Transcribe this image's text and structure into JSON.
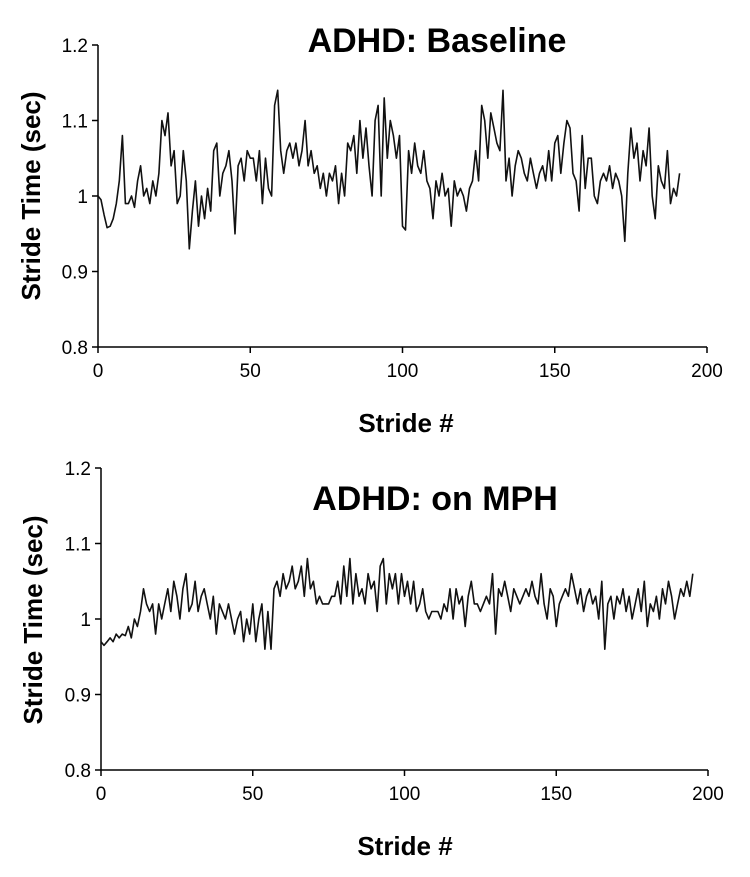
{
  "chart_data": [
    {
      "type": "line",
      "title": "ADHD: Baseline",
      "xlabel": "Stride #",
      "ylabel": "Stride Time (sec)",
      "xlim": [
        0,
        200
      ],
      "ylim": [
        0.8,
        1.2
      ],
      "xticks": [
        0,
        50,
        100,
        150,
        200
      ],
      "yticks": [
        0.8,
        0.9,
        1,
        1.1,
        1.2
      ],
      "x_tick_labels": [
        "0",
        "50",
        "100",
        "150",
        "200"
      ],
      "y_tick_labels": [
        "0.8",
        "0.9",
        "1",
        "1.1",
        "1.2"
      ],
      "grid": false,
      "series": [
        {
          "x_start": 0,
          "values": [
            1.0,
            0.995,
            0.975,
            0.958,
            0.96,
            0.97,
            0.99,
            1.02,
            1.08,
            0.99,
            0.99,
            1.0,
            0.985,
            1.02,
            1.04,
            1.0,
            1.01,
            0.99,
            1.02,
            1.0,
            1.03,
            1.1,
            1.08,
            1.11,
            1.04,
            1.06,
            0.99,
            1.0,
            1.06,
            1.02,
            0.93,
            0.98,
            1.02,
            0.96,
            1.0,
            0.97,
            1.01,
            0.98,
            1.06,
            1.07,
            1.0,
            1.03,
            1.04,
            1.06,
            1.02,
            0.95,
            1.04,
            1.05,
            1.02,
            1.06,
            1.05,
            1.05,
            1.02,
            1.06,
            0.99,
            1.05,
            1.01,
            1.0,
            1.12,
            1.14,
            1.06,
            1.03,
            1.06,
            1.07,
            1.05,
            1.07,
            1.04,
            1.06,
            1.1,
            1.04,
            1.06,
            1.03,
            1.04,
            1.01,
            1.03,
            1.0,
            1.03,
            1.02,
            1.04,
            0.99,
            1.03,
            1.0,
            1.07,
            1.06,
            1.08,
            1.03,
            1.1,
            1.05,
            1.09,
            1.04,
            1.0,
            1.1,
            1.12,
            1.0,
            1.13,
            1.05,
            1.1,
            1.08,
            1.05,
            1.08,
            0.96,
            0.955,
            1.06,
            1.03,
            1.07,
            1.04,
            1.03,
            1.06,
            1.02,
            1.01,
            0.97,
            1.02,
            1.0,
            1.03,
            1.0,
            1.01,
            0.96,
            1.02,
            1.0,
            1.01,
            1.0,
            0.98,
            1.01,
            1.02,
            1.06,
            1.02,
            1.12,
            1.1,
            1.05,
            1.11,
            1.09,
            1.07,
            1.06,
            1.14,
            1.02,
            1.05,
            1.0,
            1.04,
            1.06,
            1.05,
            1.03,
            1.02,
            1.05,
            1.03,
            1.01,
            1.03,
            1.04,
            1.02,
            1.06,
            1.02,
            1.07,
            1.08,
            1.03,
            1.07,
            1.1,
            1.09,
            1.03,
            1.02,
            0.98,
            1.08,
            1.01,
            1.05,
            1.05,
            1.0,
            0.99,
            1.02,
            1.03,
            1.02,
            1.04,
            1.01,
            1.03,
            1.02,
            1.0,
            0.94,
            1.03,
            1.09,
            1.05,
            1.07,
            1.02,
            1.06,
            1.04,
            1.09,
            1.0,
            0.97,
            1.04,
            1.02,
            1.01,
            1.06,
            0.99,
            1.01,
            1.0,
            1.03
          ]
        }
      ]
    },
    {
      "type": "line",
      "title": "ADHD: on MPH",
      "xlabel": "Stride #",
      "ylabel": "Stride Time (sec)",
      "xlim": [
        0,
        200
      ],
      "ylim": [
        0.8,
        1.2
      ],
      "xticks": [
        0,
        50,
        100,
        150,
        200
      ],
      "yticks": [
        0.8,
        0.9,
        1,
        1.1,
        1.2
      ],
      "x_tick_labels": [
        "0",
        "50",
        "100",
        "150",
        "200"
      ],
      "y_tick_labels": [
        "0.8",
        "0.9",
        "1",
        "1.1",
        "1.2"
      ],
      "grid": false,
      "series": [
        {
          "x_start": 0,
          "values": [
            0.97,
            0.965,
            0.97,
            0.975,
            0.97,
            0.98,
            0.975,
            0.98,
            0.978,
            0.99,
            0.975,
            1.0,
            0.99,
            1.01,
            1.04,
            1.02,
            1.01,
            1.02,
            0.98,
            1.02,
            1.0,
            1.02,
            1.04,
            1.01,
            1.05,
            1.03,
            1.0,
            1.04,
            1.06,
            1.01,
            1.02,
            1.05,
            1.01,
            1.03,
            1.04,
            1.02,
            1.0,
            1.03,
            0.98,
            1.02,
            1.01,
            1.0,
            1.02,
            1.0,
            0.98,
            1.0,
            1.01,
            0.97,
            1.0,
            0.98,
            1.02,
            0.97,
            1.0,
            1.02,
            0.96,
            1.01,
            0.96,
            1.04,
            1.05,
            1.03,
            1.06,
            1.04,
            1.05,
            1.07,
            1.04,
            1.05,
            1.07,
            1.03,
            1.08,
            1.04,
            1.05,
            1.02,
            1.03,
            1.02,
            1.02,
            1.02,
            1.03,
            1.03,
            1.05,
            1.02,
            1.07,
            1.03,
            1.08,
            1.02,
            1.06,
            1.03,
            1.04,
            1.02,
            1.06,
            1.04,
            1.05,
            1.01,
            1.07,
            1.08,
            1.02,
            1.06,
            1.04,
            1.06,
            1.02,
            1.06,
            1.03,
            1.05,
            1.02,
            1.05,
            1.01,
            1.02,
            1.04,
            1.01,
            1.0,
            1.01,
            1.01,
            1.01,
            1.0,
            1.02,
            1.01,
            1.04,
            1.0,
            1.04,
            1.02,
            1.03,
            0.99,
            1.03,
            1.05,
            1.02,
            1.02,
            1.01,
            1.02,
            1.03,
            1.02,
            1.06,
            0.98,
            1.04,
            1.03,
            1.05,
            1.03,
            1.01,
            1.04,
            1.03,
            1.02,
            1.03,
            1.04,
            1.03,
            1.05,
            1.03,
            1.02,
            1.06,
            1.02,
            1.0,
            1.04,
            1.03,
            0.99,
            1.02,
            1.03,
            1.04,
            1.03,
            1.06,
            1.04,
            1.02,
            1.04,
            1.01,
            1.03,
            1.04,
            1.02,
            1.03,
            1.0,
            1.05,
            0.96,
            1.02,
            1.03,
            1.0,
            1.03,
            1.02,
            1.04,
            1.01,
            1.03,
            1.0,
            1.02,
            1.04,
            1.01,
            1.05,
            0.99,
            1.02,
            1.01,
            1.03,
            1.0,
            1.04,
            1.02,
            1.05,
            1.03,
            1.0,
            1.02,
            1.04,
            1.03,
            1.05,
            1.03,
            1.06
          ]
        }
      ]
    }
  ]
}
